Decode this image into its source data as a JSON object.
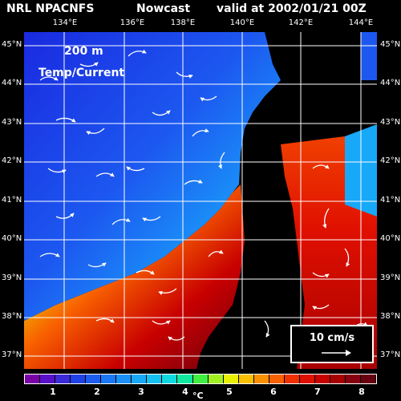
{
  "header": {
    "model": "NRL NPACNFS",
    "product": "Nowcast",
    "valid": "valid at 2002/01/21 00Z"
  },
  "map": {
    "depth_label": "200 m",
    "field_label": "Temp/Current",
    "lon_labels": [
      "134°E",
      "136°E",
      "138°E",
      "140°E",
      "142°E",
      "144°E"
    ],
    "lat_labels": [
      "45°N",
      "44°N",
      "43°N",
      "42°N",
      "41°N",
      "40°N",
      "39°N",
      "38°N",
      "37°N"
    ],
    "land_color": "#000000",
    "grid_color": "#ffffff",
    "vector_color": "#ffffff"
  },
  "scale_vector": {
    "label": "10 cm/s"
  },
  "colorbar": {
    "labels": [
      "1",
      "2",
      "3",
      "4",
      "5",
      "6",
      "7",
      "8"
    ],
    "unit": "°C",
    "colors": [
      "#7a00a8",
      "#5a10c8",
      "#3a2ad8",
      "#2040e8",
      "#1c5cf0",
      "#1a78f4",
      "#1a90f8",
      "#18a8f8",
      "#14c0f0",
      "#10d8e0",
      "#10e8a0",
      "#40f040",
      "#a0f020",
      "#e8f000",
      "#f8c000",
      "#f89000",
      "#f86000",
      "#f03000",
      "#e01000",
      "#c80000",
      "#a80000",
      "#880010",
      "#680010"
    ]
  }
}
